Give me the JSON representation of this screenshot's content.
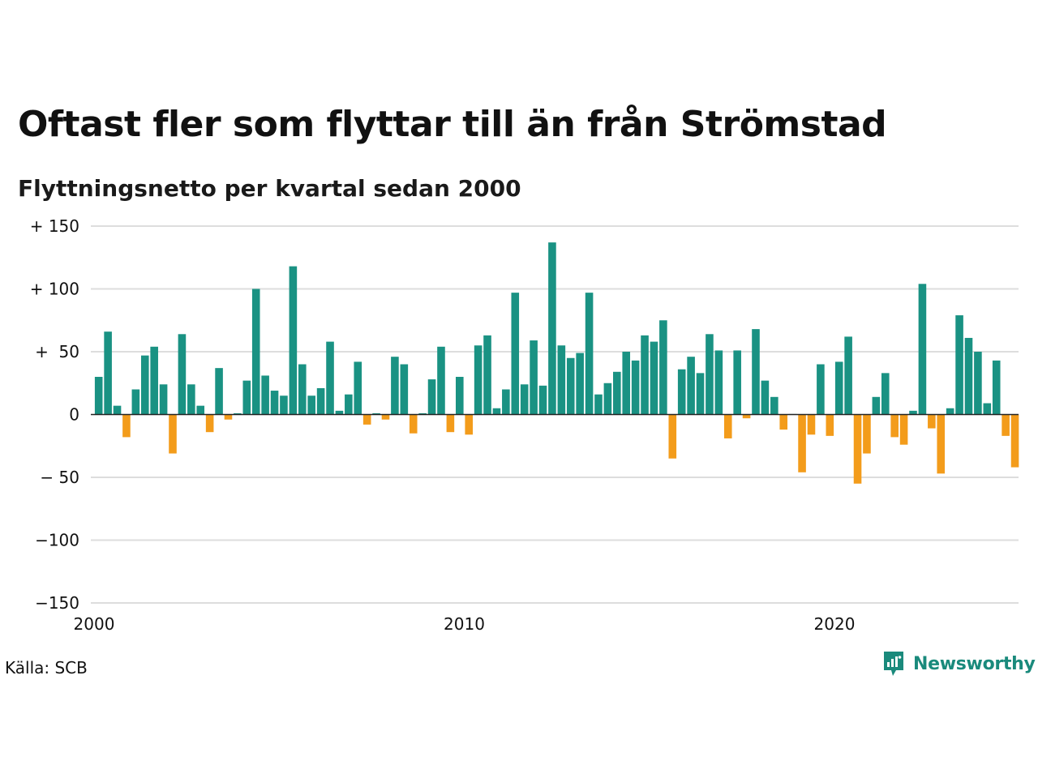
{
  "title": "Oftast fler som flyttar till än från Strömstad",
  "subtitle": "Flyttningsnetto per kvartal sedan 2000",
  "source": "Källa: SCB",
  "brand": {
    "name": "Newsworthy",
    "color": "#1a8a7c"
  },
  "colors": {
    "positive": "#1a9283",
    "negative": "#f39c1b",
    "grid": "#dddddd",
    "zero_line": "#222222"
  },
  "chart_data": {
    "type": "bar",
    "title": "Oftast fler som flyttar till än från Strömstad",
    "subtitle": "Flyttningsnetto per kvartal sedan 2000",
    "ylim": [
      -150,
      150
    ],
    "y_ticks": [
      150,
      100,
      50,
      0,
      -50,
      -100,
      -150
    ],
    "y_tick_labels": [
      "+ 150",
      "+ 100",
      "+  50",
      "0",
      "− 50",
      "−100",
      "−150"
    ],
    "x_ticks": [
      "2000",
      "2010",
      "2020"
    ],
    "grid": true,
    "series": [
      {
        "start": "2000 Q1",
        "frequency": "quarter",
        "values": [
          30,
          66,
          7,
          -18,
          20,
          47,
          54,
          24,
          -31,
          64,
          24,
          7,
          -14,
          37,
          -4,
          1,
          27,
          100,
          31,
          19,
          15,
          118,
          40,
          15,
          21,
          58,
          3,
          16,
          42,
          -8,
          1,
          -4,
          46,
          40,
          -15,
          1,
          28,
          54,
          -14,
          30,
          -16,
          55,
          63,
          5,
          20,
          97,
          24,
          59,
          23,
          137,
          55,
          45,
          49,
          97,
          16,
          25,
          34,
          50,
          43,
          63,
          58,
          75,
          -35,
          36,
          46,
          33,
          64,
          51,
          -19,
          51,
          -3,
          68,
          27,
          14,
          -12,
          0,
          -46,
          -16,
          40,
          -17,
          42,
          62,
          -55,
          -31,
          14,
          33,
          -18,
          -24,
          3,
          104,
          -11,
          -47,
          5,
          79,
          61,
          50,
          9,
          43,
          -17,
          -42
        ]
      }
    ]
  }
}
